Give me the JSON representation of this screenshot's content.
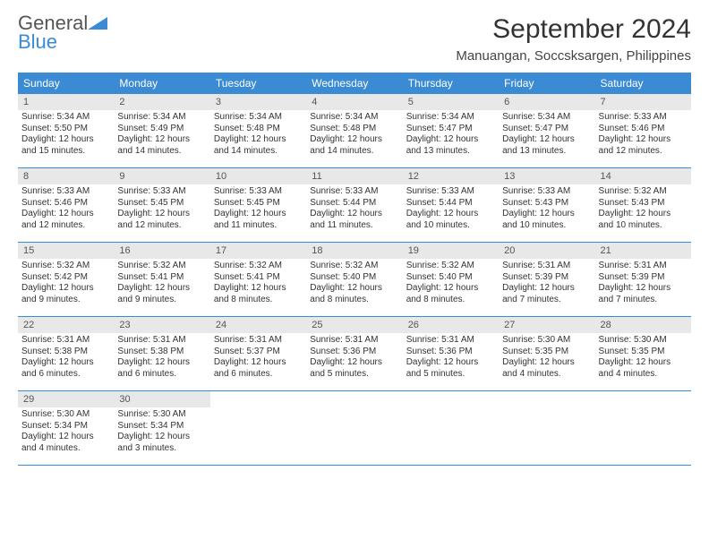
{
  "brand": {
    "name1": "General",
    "name2": "Blue"
  },
  "title": "September 2024",
  "location": "Manuangan, Soccsksargen, Philippines",
  "colors": {
    "header_bg": "#3b8bd4",
    "daynum_bg": "#e8e8e8",
    "text": "#333333",
    "rule": "#3b8bd4"
  },
  "fonts": {
    "title_size": 30,
    "location_size": 15,
    "dow_size": 12,
    "daynum_size": 11,
    "body_size": 10
  },
  "days_of_week": [
    "Sunday",
    "Monday",
    "Tuesday",
    "Wednesday",
    "Thursday",
    "Friday",
    "Saturday"
  ],
  "weeks": [
    [
      {
        "n": "1",
        "sr": "Sunrise: 5:34 AM",
        "ss": "Sunset: 5:50 PM",
        "d1": "Daylight: 12 hours",
        "d2": "and 15 minutes."
      },
      {
        "n": "2",
        "sr": "Sunrise: 5:34 AM",
        "ss": "Sunset: 5:49 PM",
        "d1": "Daylight: 12 hours",
        "d2": "and 14 minutes."
      },
      {
        "n": "3",
        "sr": "Sunrise: 5:34 AM",
        "ss": "Sunset: 5:48 PM",
        "d1": "Daylight: 12 hours",
        "d2": "and 14 minutes."
      },
      {
        "n": "4",
        "sr": "Sunrise: 5:34 AM",
        "ss": "Sunset: 5:48 PM",
        "d1": "Daylight: 12 hours",
        "d2": "and 14 minutes."
      },
      {
        "n": "5",
        "sr": "Sunrise: 5:34 AM",
        "ss": "Sunset: 5:47 PM",
        "d1": "Daylight: 12 hours",
        "d2": "and 13 minutes."
      },
      {
        "n": "6",
        "sr": "Sunrise: 5:34 AM",
        "ss": "Sunset: 5:47 PM",
        "d1": "Daylight: 12 hours",
        "d2": "and 13 minutes."
      },
      {
        "n": "7",
        "sr": "Sunrise: 5:33 AM",
        "ss": "Sunset: 5:46 PM",
        "d1": "Daylight: 12 hours",
        "d2": "and 12 minutes."
      }
    ],
    [
      {
        "n": "8",
        "sr": "Sunrise: 5:33 AM",
        "ss": "Sunset: 5:46 PM",
        "d1": "Daylight: 12 hours",
        "d2": "and 12 minutes."
      },
      {
        "n": "9",
        "sr": "Sunrise: 5:33 AM",
        "ss": "Sunset: 5:45 PM",
        "d1": "Daylight: 12 hours",
        "d2": "and 12 minutes."
      },
      {
        "n": "10",
        "sr": "Sunrise: 5:33 AM",
        "ss": "Sunset: 5:45 PM",
        "d1": "Daylight: 12 hours",
        "d2": "and 11 minutes."
      },
      {
        "n": "11",
        "sr": "Sunrise: 5:33 AM",
        "ss": "Sunset: 5:44 PM",
        "d1": "Daylight: 12 hours",
        "d2": "and 11 minutes."
      },
      {
        "n": "12",
        "sr": "Sunrise: 5:33 AM",
        "ss": "Sunset: 5:44 PM",
        "d1": "Daylight: 12 hours",
        "d2": "and 10 minutes."
      },
      {
        "n": "13",
        "sr": "Sunrise: 5:33 AM",
        "ss": "Sunset: 5:43 PM",
        "d1": "Daylight: 12 hours",
        "d2": "and 10 minutes."
      },
      {
        "n": "14",
        "sr": "Sunrise: 5:32 AM",
        "ss": "Sunset: 5:43 PM",
        "d1": "Daylight: 12 hours",
        "d2": "and 10 minutes."
      }
    ],
    [
      {
        "n": "15",
        "sr": "Sunrise: 5:32 AM",
        "ss": "Sunset: 5:42 PM",
        "d1": "Daylight: 12 hours",
        "d2": "and 9 minutes."
      },
      {
        "n": "16",
        "sr": "Sunrise: 5:32 AM",
        "ss": "Sunset: 5:41 PM",
        "d1": "Daylight: 12 hours",
        "d2": "and 9 minutes."
      },
      {
        "n": "17",
        "sr": "Sunrise: 5:32 AM",
        "ss": "Sunset: 5:41 PM",
        "d1": "Daylight: 12 hours",
        "d2": "and 8 minutes."
      },
      {
        "n": "18",
        "sr": "Sunrise: 5:32 AM",
        "ss": "Sunset: 5:40 PM",
        "d1": "Daylight: 12 hours",
        "d2": "and 8 minutes."
      },
      {
        "n": "19",
        "sr": "Sunrise: 5:32 AM",
        "ss": "Sunset: 5:40 PM",
        "d1": "Daylight: 12 hours",
        "d2": "and 8 minutes."
      },
      {
        "n": "20",
        "sr": "Sunrise: 5:31 AM",
        "ss": "Sunset: 5:39 PM",
        "d1": "Daylight: 12 hours",
        "d2": "and 7 minutes."
      },
      {
        "n": "21",
        "sr": "Sunrise: 5:31 AM",
        "ss": "Sunset: 5:39 PM",
        "d1": "Daylight: 12 hours",
        "d2": "and 7 minutes."
      }
    ],
    [
      {
        "n": "22",
        "sr": "Sunrise: 5:31 AM",
        "ss": "Sunset: 5:38 PM",
        "d1": "Daylight: 12 hours",
        "d2": "and 6 minutes."
      },
      {
        "n": "23",
        "sr": "Sunrise: 5:31 AM",
        "ss": "Sunset: 5:38 PM",
        "d1": "Daylight: 12 hours",
        "d2": "and 6 minutes."
      },
      {
        "n": "24",
        "sr": "Sunrise: 5:31 AM",
        "ss": "Sunset: 5:37 PM",
        "d1": "Daylight: 12 hours",
        "d2": "and 6 minutes."
      },
      {
        "n": "25",
        "sr": "Sunrise: 5:31 AM",
        "ss": "Sunset: 5:36 PM",
        "d1": "Daylight: 12 hours",
        "d2": "and 5 minutes."
      },
      {
        "n": "26",
        "sr": "Sunrise: 5:31 AM",
        "ss": "Sunset: 5:36 PM",
        "d1": "Daylight: 12 hours",
        "d2": "and 5 minutes."
      },
      {
        "n": "27",
        "sr": "Sunrise: 5:30 AM",
        "ss": "Sunset: 5:35 PM",
        "d1": "Daylight: 12 hours",
        "d2": "and 4 minutes."
      },
      {
        "n": "28",
        "sr": "Sunrise: 5:30 AM",
        "ss": "Sunset: 5:35 PM",
        "d1": "Daylight: 12 hours",
        "d2": "and 4 minutes."
      }
    ],
    [
      {
        "n": "29",
        "sr": "Sunrise: 5:30 AM",
        "ss": "Sunset: 5:34 PM",
        "d1": "Daylight: 12 hours",
        "d2": "and 4 minutes."
      },
      {
        "n": "30",
        "sr": "Sunrise: 5:30 AM",
        "ss": "Sunset: 5:34 PM",
        "d1": "Daylight: 12 hours",
        "d2": "and 3 minutes."
      },
      null,
      null,
      null,
      null,
      null
    ]
  ]
}
